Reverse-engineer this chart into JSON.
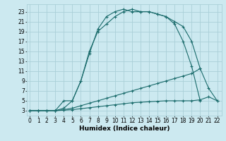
{
  "bg_color": "#cce9f0",
  "grid_color": "#aacfd8",
  "line_color": "#1a6b6b",
  "line_width": 0.8,
  "marker": "+",
  "markersize": 3,
  "markeredgewidth": 0.8,
  "xlabel": "Humidex (Indice chaleur)",
  "xlabel_fontsize": 6.5,
  "tick_fontsize": 5.5,
  "ytick_values": [
    3,
    5,
    7,
    9,
    11,
    13,
    15,
    17,
    19,
    21,
    23
  ],
  "xtick_values": [
    0,
    1,
    2,
    3,
    4,
    5,
    6,
    7,
    8,
    9,
    10,
    11,
    12,
    13,
    14,
    15,
    16,
    17,
    18,
    19,
    20,
    21,
    22
  ],
  "xlim": [
    -0.3,
    22.5
  ],
  "ylim": [
    2.0,
    24.5
  ],
  "line1_x": [
    0,
    1,
    2,
    3,
    4,
    5,
    6,
    7,
    8,
    9,
    10,
    11,
    12,
    13,
    14,
    15,
    16,
    17,
    18,
    19,
    20
  ],
  "line1_y": [
    3,
    3,
    3,
    3,
    3.5,
    5,
    9,
    14.5,
    19.5,
    22,
    23,
    23.5,
    23,
    23,
    23,
    22.5,
    22,
    21,
    20,
    17,
    11.5
  ],
  "line2_x": [
    3,
    4,
    5,
    6,
    7,
    8,
    9,
    10,
    11,
    12,
    13,
    14,
    15,
    16,
    17,
    18,
    19,
    20
  ],
  "line2_y": [
    3,
    5,
    5,
    9,
    15,
    19,
    20.5,
    22,
    23,
    23.5,
    23,
    23,
    22.5,
    22,
    20.5,
    17,
    12,
    5
  ],
  "line3_x": [
    0,
    1,
    2,
    3,
    4,
    5,
    6,
    7,
    8,
    9,
    10,
    11,
    12,
    13,
    14,
    15,
    16,
    17,
    18,
    19,
    20,
    21,
    22
  ],
  "line3_y": [
    3,
    3,
    3,
    3,
    3.2,
    3.5,
    4,
    4.5,
    5,
    5.5,
    6,
    6.5,
    7,
    7.5,
    8,
    8.5,
    9,
    9.5,
    10,
    10.5,
    11.5,
    7.5,
    5
  ],
  "line4_x": [
    0,
    1,
    2,
    3,
    4,
    5,
    6,
    7,
    8,
    9,
    10,
    11,
    12,
    13,
    14,
    15,
    16,
    17,
    18,
    19,
    20,
    21,
    22
  ],
  "line4_y": [
    3,
    3,
    3,
    3,
    3.1,
    3.2,
    3.4,
    3.6,
    3.8,
    4.0,
    4.2,
    4.4,
    4.6,
    4.7,
    4.8,
    4.9,
    5.0,
    5.0,
    5.0,
    5.0,
    5.2,
    5.8,
    5
  ]
}
